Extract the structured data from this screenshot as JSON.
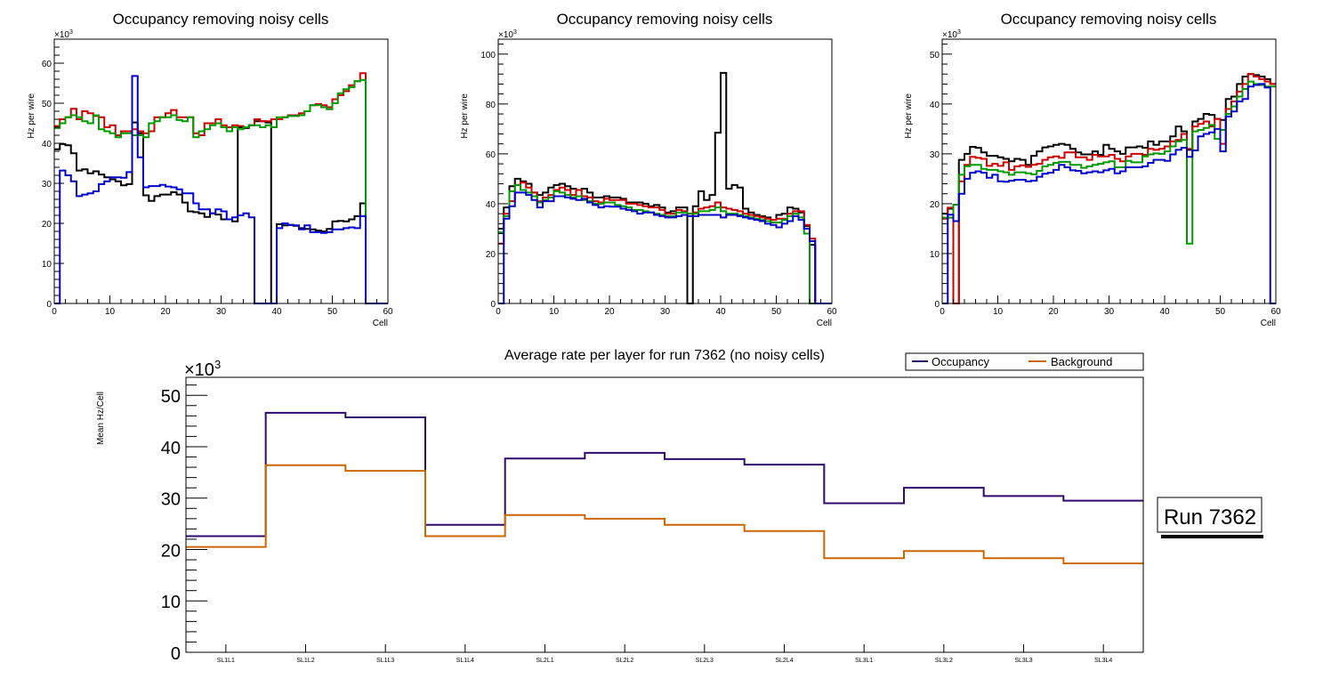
{
  "chart_data": [
    {
      "type": "line",
      "subtype": "step-histogram",
      "title": "Occupancy removing noisy cells",
      "xlabel": "Cell",
      "ylabel": "Hz per wire",
      "y_multiplier_label": "×10^3",
      "xlim": [
        0,
        60
      ],
      "ylim": [
        0,
        66
      ],
      "xticks": [
        0,
        10,
        20,
        30,
        40,
        50,
        60
      ],
      "yticks": [
        0,
        10,
        20,
        30,
        40,
        50,
        60
      ],
      "grid": false,
      "series": [
        {
          "name": "layer-black",
          "color": "#000000",
          "values": [
            38.5,
            39.8,
            39.5,
            37.5,
            33.2,
            33.5,
            32.5,
            33.0,
            32.2,
            31.5,
            31.0,
            30.5,
            29.5,
            29.8,
            45.2,
            42.5,
            27.0,
            25.6,
            26.8,
            27.2,
            27.2,
            27.8,
            27.2,
            25.2,
            23.0,
            22.8,
            22.5,
            21.6,
            22.5,
            22.2,
            21.0,
            21.0,
            20.5,
            44.0,
            43.8,
            44.5,
            45.5,
            45.5,
            45.2,
            0,
            19.8,
            19.5,
            19.6,
            19.4,
            18.8,
            18.6,
            18.5,
            18.2,
            18.0,
            18.6,
            20.5,
            20.6,
            20.5,
            21.0,
            21.8,
            25.0,
            0,
            0,
            0,
            0
          ]
        },
        {
          "name": "layer-red",
          "color": "#cc0000",
          "values": [
            44.3,
            46.0,
            46.5,
            48.6,
            46.0,
            48.0,
            47.5,
            46.8,
            46.5,
            44.0,
            44.5,
            42.0,
            43.0,
            43.0,
            43.5,
            43.0,
            42.5,
            43.0,
            46.5,
            46.5,
            47.5,
            48.3,
            46.5,
            46.5,
            46.5,
            42.5,
            42.0,
            45.0,
            45.0,
            46.0,
            44.5,
            44.0,
            44.5,
            44.3,
            44.0,
            44.5,
            46.0,
            45.5,
            45.5,
            46.0,
            46.0,
            46.5,
            47.0,
            47.0,
            47.5,
            48.0,
            49.5,
            49.8,
            49.5,
            49.0,
            51.0,
            52.0,
            53.0,
            54.5,
            55.5,
            57.5,
            0,
            0,
            0,
            0
          ]
        },
        {
          "name": "layer-green",
          "color": "#009900",
          "values": [
            43.8,
            45.0,
            46.5,
            47.0,
            46.5,
            45.5,
            45.0,
            47.0,
            43.5,
            43.0,
            42.5,
            41.5,
            42.5,
            42.5,
            42.0,
            42.0,
            41.5,
            45.0,
            45.5,
            46.5,
            46.5,
            47.0,
            45.8,
            45.5,
            46.5,
            41.5,
            43.0,
            43.5,
            44.5,
            45.0,
            44.0,
            43.0,
            44.0,
            43.5,
            44.0,
            44.5,
            44.5,
            44.0,
            44.5,
            44.0,
            46.5,
            46.5,
            46.8,
            46.8,
            47.0,
            48.0,
            49.5,
            49.5,
            49.0,
            48.5,
            50.0,
            52.5,
            53.5,
            54.0,
            55.5,
            55.8,
            0,
            0,
            0,
            0
          ]
        },
        {
          "name": "layer-blue",
          "color": "#0000cc",
          "values": [
            0,
            33.2,
            32.0,
            30.5,
            26.8,
            27.2,
            27.5,
            28.0,
            29.8,
            30.5,
            31.5,
            31.5,
            31.4,
            32.8,
            56.8,
            36.5,
            29.0,
            29.3,
            29.3,
            29.6,
            29.2,
            29.0,
            28.5,
            27.5,
            27.5,
            25.0,
            23.5,
            23.5,
            22.5,
            23.5,
            23.0,
            21.0,
            21.5,
            22.0,
            22.5,
            21.5,
            0,
            0,
            0,
            0,
            18.8,
            20.0,
            19.6,
            19.5,
            18.5,
            19.5,
            17.8,
            17.8,
            17.6,
            17.8,
            18.5,
            18.5,
            18.8,
            19.0,
            18.8,
            21.8,
            0,
            0,
            0,
            0
          ]
        }
      ]
    },
    {
      "type": "line",
      "subtype": "step-histogram",
      "title": "Occupancy removing noisy cells",
      "xlabel": "Cell",
      "ylabel": "Hz per wire",
      "y_multiplier_label": "×10^3",
      "xlim": [
        0,
        60
      ],
      "ylim": [
        0,
        106
      ],
      "xticks": [
        0,
        10,
        20,
        30,
        40,
        50,
        60
      ],
      "yticks": [
        0,
        20,
        40,
        60,
        80,
        100
      ],
      "grid": false,
      "series": [
        {
          "name": "layer-black",
          "color": "#000000",
          "values": [
            30.0,
            38.5,
            47.0,
            50.0,
            49.0,
            48.0,
            44.5,
            43.5,
            44.5,
            46.5,
            47.5,
            48.0,
            47.0,
            46.0,
            45.5,
            46.0,
            44.5,
            42.5,
            42.5,
            43.0,
            42.5,
            42.5,
            42.0,
            40.5,
            40.5,
            40.5,
            40.0,
            39.0,
            39.5,
            38.5,
            36.5,
            37.0,
            38.5,
            38.5,
            0,
            39.0,
            45.0,
            41.5,
            43.5,
            68.5,
            92.5,
            46.0,
            47.5,
            46.5,
            38.0,
            36.5,
            35.5,
            35.0,
            34.5,
            33.5,
            35.5,
            36.0,
            38.5,
            38.0,
            36.5,
            31.0,
            23.5,
            0,
            0,
            0
          ]
        },
        {
          "name": "layer-red",
          "color": "#cc0000",
          "values": [
            24.0,
            36.0,
            41.0,
            47.5,
            48.5,
            46.5,
            44.5,
            41.0,
            42.5,
            43.5,
            45.5,
            46.5,
            45.5,
            43.5,
            45.5,
            43.0,
            42.5,
            41.0,
            40.5,
            42.0,
            41.5,
            41.5,
            41.5,
            40.0,
            40.0,
            39.5,
            39.0,
            38.5,
            38.5,
            37.5,
            36.0,
            36.0,
            37.5,
            37.0,
            36.0,
            36.5,
            38.0,
            38.5,
            39.0,
            40.5,
            38.5,
            38.0,
            37.5,
            37.0,
            36.0,
            35.5,
            35.0,
            34.5,
            34.0,
            33.5,
            34.0,
            34.0,
            36.0,
            37.0,
            37.0,
            31.5,
            26.0,
            0,
            0,
            0
          ]
        },
        {
          "name": "layer-green",
          "color": "#009900",
          "values": [
            28.5,
            35.0,
            45.0,
            47.5,
            45.5,
            44.5,
            43.0,
            40.5,
            41.5,
            42.5,
            45.0,
            44.5,
            43.5,
            42.5,
            43.0,
            41.5,
            41.0,
            40.0,
            40.0,
            40.5,
            40.5,
            39.5,
            39.0,
            38.5,
            37.5,
            37.5,
            37.0,
            36.5,
            36.0,
            35.5,
            35.0,
            35.0,
            36.5,
            36.5,
            36.0,
            36.0,
            37.0,
            37.0,
            37.5,
            38.5,
            37.0,
            36.0,
            36.0,
            35.5,
            35.0,
            34.5,
            34.0,
            33.5,
            33.0,
            32.5,
            32.5,
            33.5,
            35.0,
            36.0,
            34.5,
            28.0,
            0,
            0,
            0,
            0
          ]
        },
        {
          "name": "layer-blue",
          "color": "#0000cc",
          "values": [
            0,
            34.0,
            39.0,
            44.5,
            44.5,
            43.5,
            41.5,
            38.5,
            41.0,
            41.0,
            43.0,
            43.0,
            42.5,
            42.0,
            41.5,
            42.0,
            40.5,
            39.5,
            38.5,
            39.0,
            38.8,
            38.8,
            38.0,
            37.5,
            37.0,
            36.0,
            36.5,
            36.5,
            35.5,
            35.0,
            34.5,
            34.5,
            35.0,
            35.5,
            35.0,
            35.0,
            35.5,
            35.5,
            35.5,
            35.5,
            34.5,
            35.5,
            35.5,
            35.0,
            34.5,
            34.0,
            33.5,
            33.0,
            32.0,
            31.5,
            30.5,
            32.0,
            33.0,
            35.0,
            33.5,
            30.0,
            25.0,
            0,
            0,
            0
          ]
        }
      ]
    },
    {
      "type": "line",
      "subtype": "step-histogram",
      "title": "Occupancy removing noisy cells",
      "xlabel": "Cell",
      "ylabel": "Hz per wire",
      "y_multiplier_label": "×10^3",
      "xlim": [
        0,
        60
      ],
      "ylim": [
        0,
        53
      ],
      "xticks": [
        0,
        10,
        20,
        30,
        40,
        50,
        60
      ],
      "yticks": [
        0,
        10,
        20,
        30,
        40,
        50
      ],
      "grid": false,
      "series": [
        {
          "name": "layer-black",
          "color": "#000000",
          "values": [
            18.0,
            19.0,
            0,
            28.8,
            30.0,
            31.4,
            31.2,
            30.3,
            29.6,
            29.6,
            29.3,
            29.0,
            28.5,
            29.0,
            28.8,
            27.8,
            29.6,
            30.5,
            31.3,
            31.5,
            31.8,
            32.0,
            31.8,
            31.0,
            30.3,
            29.9,
            29.9,
            30.5,
            29.8,
            31.8,
            31.0,
            30.5,
            30.0,
            31.3,
            31.3,
            31.5,
            31.2,
            32.5,
            31.8,
            32.5,
            32.5,
            33.5,
            35.5,
            34.5,
            30.8,
            36.5,
            37.0,
            38.0,
            37.8,
            37.0,
            36.8,
            41.0,
            41.5,
            44.0,
            45.5,
            46.0,
            45.8,
            45.5,
            45.0,
            44.0
          ]
        },
        {
          "name": "layer-red",
          "color": "#cc0000",
          "values": [
            17.0,
            19.2,
            0,
            24.5,
            27.8,
            29.4,
            29.2,
            29.0,
            27.6,
            28.0,
            27.6,
            28.3,
            26.8,
            27.5,
            27.7,
            27.4,
            27.8,
            28.0,
            28.8,
            29.3,
            29.5,
            29.2,
            30.3,
            30.3,
            29.3,
            29.3,
            28.8,
            29.8,
            29.5,
            29.5,
            29.8,
            29.0,
            28.5,
            29.5,
            30.0,
            30.0,
            29.8,
            31.0,
            30.8,
            31.0,
            31.5,
            32.5,
            32.8,
            34.0,
            31.0,
            35.5,
            36.0,
            36.5,
            35.5,
            37.0,
            32.0,
            39.0,
            40.5,
            42.5,
            44.0,
            46.0,
            45.5,
            45.0,
            44.5,
            44.0
          ]
        },
        {
          "name": "layer-green",
          "color": "#009900",
          "values": [
            17.2,
            17.2,
            19.8,
            25.8,
            27.5,
            27.8,
            27.8,
            27.0,
            26.8,
            26.8,
            26.5,
            26.3,
            25.8,
            26.3,
            26.3,
            26.1,
            25.9,
            26.6,
            27.5,
            27.8,
            28.2,
            28.4,
            28.4,
            27.8,
            27.8,
            27.2,
            27.5,
            27.8,
            28.0,
            28.3,
            28.5,
            27.3,
            27.3,
            28.6,
            28.3,
            28.3,
            29.5,
            29.9,
            30.1,
            30.0,
            30.5,
            31.5,
            32.5,
            32.8,
            12.0,
            34.5,
            34.8,
            35.2,
            35.8,
            33.0,
            34.8,
            38.0,
            39.5,
            41.5,
            43.0,
            44.5,
            44.0,
            43.8,
            43.5,
            43.5
          ]
        },
        {
          "name": "layer-blue",
          "color": "#0000cc",
          "values": [
            0,
            17.8,
            16.5,
            22.0,
            25.0,
            26.2,
            26.5,
            26.2,
            25.2,
            25.8,
            24.5,
            24.4,
            24.6,
            24.8,
            24.8,
            24.5,
            24.6,
            25.4,
            26.0,
            26.2,
            26.8,
            27.8,
            27.3,
            26.7,
            26.6,
            26.1,
            26.3,
            26.5,
            26.3,
            26.7,
            27.0,
            26.1,
            26.5,
            27.3,
            27.3,
            27.3,
            27.5,
            28.2,
            28.8,
            28.8,
            28.6,
            29.9,
            30.8,
            31.2,
            29.4,
            30.7,
            33.5,
            34.0,
            34.3,
            35.0,
            30.5,
            37.5,
            38.5,
            40.5,
            41.0,
            43.5,
            43.8,
            44.0,
            43.3,
            0
          ]
        }
      ]
    },
    {
      "type": "line",
      "subtype": "step-histogram",
      "title": "Average rate per layer for run 7362 (no noisy cells)",
      "xlabel": "",
      "ylabel": "Mean Hz/Cell",
      "y_multiplier_label": "×10^3",
      "categories": [
        "SL1L1",
        "SL1L2",
        "SL1L3",
        "SL1L4",
        "SL2L1",
        "SL2L2",
        "SL2L3",
        "SL2L4",
        "SL3L1",
        "SL3L2",
        "SL3L3",
        "SL3L4"
      ],
      "ylim": [
        0,
        53.5
      ],
      "yticks": [
        0,
        10,
        20,
        30,
        40,
        50
      ],
      "grid": false,
      "legend": "top-right",
      "series": [
        {
          "name": "Occupancy",
          "color": "#2e0a6b",
          "values": [
            22.6,
            46.6,
            45.7,
            24.8,
            37.7,
            38.8,
            37.6,
            36.5,
            29.0,
            32.0,
            30.4,
            29.5
          ]
        },
        {
          "name": "Background",
          "color": "#cc6600",
          "values": [
            20.5,
            36.4,
            35.3,
            22.6,
            26.7,
            26.0,
            24.8,
            23.6,
            18.3,
            19.7,
            18.3,
            17.3
          ]
        }
      ]
    }
  ],
  "annotation": {
    "run_label": "Run 7362"
  }
}
